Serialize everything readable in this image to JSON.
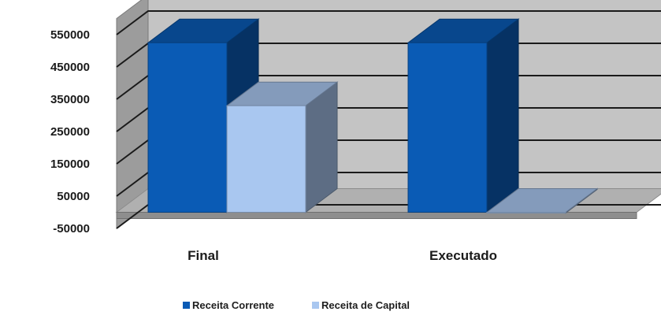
{
  "chart_data": {
    "type": "bar",
    "title": "",
    "xlabel": "",
    "ylabel": "",
    "categories": [
      "Final",
      "Executado"
    ],
    "series": [
      {
        "name": "Receita Corrente",
        "values": [
          525000,
          525000
        ],
        "color": "#0a5bb5"
      },
      {
        "name": "Receita de Capital",
        "values": [
          330000,
          0
        ],
        "color": "#a9c7f0"
      }
    ],
    "yticks": [
      -50000,
      50000,
      150000,
      250000,
      350000,
      450000,
      550000
    ],
    "ylim": [
      -50000,
      600000
    ],
    "grid": true,
    "legend_position": "bottom",
    "style": "3d-column"
  }
}
